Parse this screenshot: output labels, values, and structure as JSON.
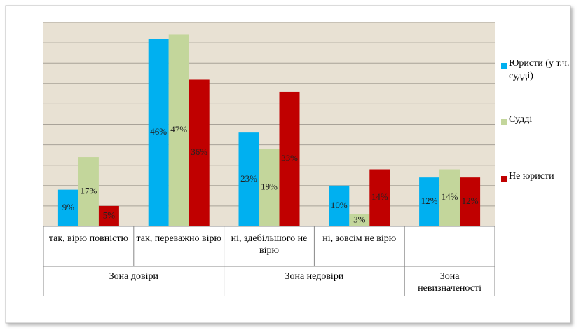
{
  "chart_data": {
    "type": "bar",
    "categories": [
      "так, вірю повністю",
      "так, переважно вірю",
      "ні, здебільшого не вірю",
      "ні, зовсім не вірю",
      null
    ],
    "category_groups": [
      "Зона довіри",
      "Зона довіри",
      "Зона недовіри",
      "Зона недовіри",
      "Зона невизначеності"
    ],
    "series": [
      {
        "name": "Юристи (у т.ч. судді)",
        "color": "#00b0f0",
        "values": [
          9,
          46,
          23,
          10,
          12
        ],
        "value_labels": [
          "9%",
          "46%",
          "23%",
          "10%",
          "12%"
        ]
      },
      {
        "name": "Судді",
        "color": "#c3d69b",
        "values": [
          17,
          47,
          19,
          3,
          14
        ],
        "value_labels": [
          "17%",
          "47%",
          "19%",
          "3%",
          "14%"
        ]
      },
      {
        "name": "Не юристи",
        "color": "#c00000",
        "values": [
          5,
          36,
          33,
          14,
          12
        ],
        "value_labels": [
          "5%",
          "36%",
          "33%",
          "14%",
          "12%"
        ]
      }
    ],
    "ylim": [
      0,
      50
    ],
    "yticks": [
      0,
      5,
      10,
      15,
      20,
      25,
      30,
      35,
      40,
      45,
      50
    ],
    "grid": true,
    "legend": "right"
  }
}
